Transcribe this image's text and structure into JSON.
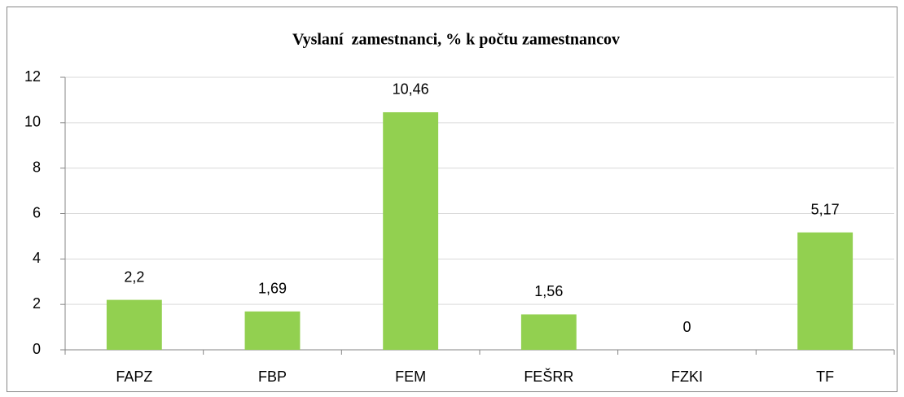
{
  "chart_data": {
    "type": "bar",
    "title": "Vyslaní  zamestnanci, % k počtu zamestnancov",
    "categories": [
      "FAPZ",
      "FBP",
      "FEM",
      "FEŠRR",
      "FZKI",
      "TF"
    ],
    "values": [
      2.2,
      1.69,
      10.46,
      1.56,
      0,
      5.17
    ],
    "value_labels": [
      "2,2",
      "1,69",
      "10,46",
      "1,56",
      "0",
      "5,17"
    ],
    "color": "#92d050",
    "ylim": [
      0,
      12
    ],
    "yticks": [
      0,
      2,
      4,
      6,
      8,
      10,
      12
    ],
    "grid": true
  }
}
